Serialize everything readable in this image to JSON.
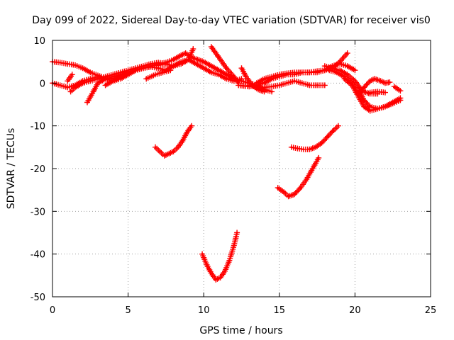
{
  "chart_data": {
    "type": "scatter",
    "title": "Day 099 of 2022, Sidereal Day-to-day VTEC variation (SDTVAR) for receiver vis0",
    "xlabel": "GPS time / hours",
    "ylabel": "SDTVAR / TECUs",
    "xlim": [
      0,
      25
    ],
    "ylim": [
      -50,
      10
    ],
    "xticks": [
      0,
      5,
      10,
      15,
      20,
      25
    ],
    "yticks": [
      10,
      0,
      -10,
      -20,
      -30,
      -40,
      -50
    ],
    "xtick_labels": [
      "0",
      "5",
      "10",
      "15",
      "20",
      "25"
    ],
    "ytick_labels": [
      "10",
      "0",
      "-10",
      "-20",
      "-30",
      "-40",
      "-50"
    ],
    "grid": true,
    "marker": "plus",
    "color": "#ff0000",
    "series": [
      {
        "points": [
          [
            0.0,
            5.0
          ],
          [
            0.5,
            4.8
          ],
          [
            1.0,
            4.5
          ],
          [
            1.5,
            4.2
          ],
          [
            2.0,
            3.5
          ],
          [
            2.5,
            2.5
          ],
          [
            3.0,
            1.8
          ],
          [
            3.5,
            1.2
          ],
          [
            4.0,
            1.0
          ],
          [
            4.5,
            1.5
          ],
          [
            5.0,
            2.5
          ]
        ]
      },
      {
        "points": [
          [
            0.0,
            0.0
          ],
          [
            0.5,
            -0.5
          ],
          [
            1.0,
            -1.0
          ],
          [
            1.5,
            -0.5
          ],
          [
            2.0,
            0.5
          ],
          [
            2.5,
            1.0
          ],
          [
            3.0,
            1.5
          ],
          [
            3.5,
            1.0
          ],
          [
            4.0,
            0.5
          ],
          [
            4.5,
            1.0
          ],
          [
            5.0,
            2.0
          ],
          [
            5.5,
            3.0
          ],
          [
            6.0,
            3.5
          ],
          [
            6.5,
            4.0
          ],
          [
            7.0,
            4.2
          ],
          [
            7.5,
            4.5
          ]
        ]
      },
      {
        "points": [
          [
            1.2,
            -2.0
          ],
          [
            1.5,
            -1.0
          ],
          [
            2.0,
            0.0
          ],
          [
            2.5,
            0.5
          ],
          [
            3.0,
            1.0
          ],
          [
            3.5,
            1.5
          ],
          [
            4.0,
            2.0
          ],
          [
            4.5,
            2.5
          ],
          [
            5.0,
            3.0
          ],
          [
            5.5,
            3.5
          ],
          [
            6.0,
            4.0
          ],
          [
            6.5,
            4.5
          ],
          [
            7.0,
            4.8
          ],
          [
            7.5,
            4.5
          ],
          [
            8.0,
            4.0
          ],
          [
            8.5,
            4.5
          ],
          [
            9.0,
            5.5
          ],
          [
            9.3,
            8.0
          ]
        ]
      },
      {
        "points": [
          [
            1.0,
            0.5
          ],
          [
            1.3,
            2.0
          ]
        ]
      },
      {
        "points": [
          [
            2.3,
            -4.5
          ],
          [
            2.7,
            -2.0
          ],
          [
            3.0,
            0.0
          ],
          [
            3.5,
            1.0
          ],
          [
            4.0,
            1.5
          ],
          [
            4.5,
            2.0
          ],
          [
            5.0,
            2.5
          ],
          [
            5.5,
            3.0
          ],
          [
            6.0,
            3.5
          ],
          [
            6.5,
            4.0
          ],
          [
            7.0,
            4.5
          ],
          [
            7.5,
            4.8
          ],
          [
            8.0,
            5.5
          ],
          [
            8.5,
            6.5
          ],
          [
            8.8,
            7.0
          ],
          [
            9.2,
            6.0
          ],
          [
            9.6,
            5.5
          ],
          [
            10.0,
            5.0
          ],
          [
            10.5,
            4.0
          ],
          [
            11.0,
            3.0
          ],
          [
            11.5,
            2.0
          ],
          [
            12.0,
            1.0
          ],
          [
            12.5,
            0.5
          ],
          [
            13.0,
            0.0
          ],
          [
            13.5,
            -0.5
          ],
          [
            14.0,
            -1.5
          ],
          [
            14.5,
            -2.0
          ]
        ]
      },
      {
        "points": [
          [
            3.5,
            -0.5
          ],
          [
            4.0,
            0.5
          ],
          [
            4.5,
            1.5
          ],
          [
            5.0,
            2.5
          ],
          [
            5.5,
            3.0
          ],
          [
            6.0,
            3.5
          ],
          [
            6.5,
            3.8
          ],
          [
            7.0,
            3.5
          ],
          [
            7.5,
            3.0
          ],
          [
            8.0,
            4.0
          ],
          [
            8.5,
            5.0
          ],
          [
            9.0,
            5.5
          ],
          [
            9.5,
            4.5
          ],
          [
            10.0,
            3.5
          ],
          [
            10.5,
            2.5
          ],
          [
            11.0,
            2.0
          ],
          [
            11.5,
            1.0
          ],
          [
            12.0,
            0.5
          ],
          [
            12.5,
            1.0
          ]
        ]
      },
      {
        "points": [
          [
            6.2,
            1.0
          ],
          [
            6.8,
            2.0
          ],
          [
            7.3,
            2.5
          ],
          [
            7.8,
            3.0
          ]
        ]
      },
      {
        "points": [
          [
            10.5,
            8.5
          ],
          [
            11.0,
            6.0
          ],
          [
            11.5,
            3.5
          ],
          [
            12.0,
            1.5
          ],
          [
            12.3,
            0.0
          ]
        ]
      },
      {
        "points": [
          [
            12.5,
            3.5
          ],
          [
            12.8,
            1.5
          ],
          [
            13.2,
            -0.5
          ],
          [
            13.6,
            -1.5
          ],
          [
            14.0,
            -2.0
          ]
        ]
      },
      {
        "points": [
          [
            12.3,
            -0.5
          ],
          [
            13.0,
            -0.8
          ],
          [
            13.5,
            -0.5
          ],
          [
            14.0,
            0.0
          ],
          [
            14.5,
            1.0
          ],
          [
            15.0,
            1.5
          ],
          [
            15.5,
            2.0
          ],
          [
            16.0,
            2.0
          ],
          [
            16.5,
            2.5
          ],
          [
            17.0,
            2.5
          ],
          [
            17.5,
            2.5
          ],
          [
            18.0,
            3.0
          ],
          [
            18.5,
            3.5
          ],
          [
            19.0,
            5.0
          ],
          [
            19.5,
            7.0
          ]
        ]
      },
      {
        "points": [
          [
            13.0,
            -0.5
          ],
          [
            13.5,
            -1.0
          ],
          [
            14.0,
            -1.0
          ],
          [
            14.5,
            -0.8
          ],
          [
            15.0,
            -0.5
          ],
          [
            15.5,
            0.0
          ],
          [
            16.0,
            0.5
          ],
          [
            16.5,
            0.0
          ],
          [
            17.0,
            -0.5
          ],
          [
            17.5,
            -0.5
          ],
          [
            18.0,
            -0.5
          ]
        ]
      },
      {
        "points": [
          [
            13.5,
            0.0
          ],
          [
            14.0,
            1.0
          ],
          [
            14.5,
            1.5
          ],
          [
            15.0,
            2.0
          ],
          [
            15.5,
            2.3
          ],
          [
            16.0,
            2.5
          ],
          [
            16.5,
            2.5
          ],
          [
            17.0,
            2.5
          ],
          [
            17.5,
            2.8
          ],
          [
            18.0,
            3.0
          ],
          [
            18.5,
            4.0
          ],
          [
            19.0,
            4.5
          ],
          [
            19.5,
            4.0
          ],
          [
            20.0,
            3.0
          ]
        ]
      },
      {
        "points": [
          [
            18.0,
            4.0
          ],
          [
            18.5,
            3.5
          ],
          [
            19.0,
            3.0
          ],
          [
            19.5,
            2.0
          ],
          [
            20.0,
            0.5
          ],
          [
            20.3,
            -1.0
          ],
          [
            20.6,
            -2.0
          ],
          [
            21.0,
            -2.5
          ],
          [
            21.5,
            -2.5
          ]
        ]
      },
      {
        "points": [
          [
            18.3,
            3.0
          ],
          [
            18.8,
            2.5
          ],
          [
            19.3,
            1.5
          ],
          [
            19.8,
            0.0
          ],
          [
            20.3,
            -2.0
          ],
          [
            20.6,
            -4.0
          ],
          [
            21.0,
            -5.5
          ],
          [
            21.5,
            -6.0
          ],
          [
            22.0,
            -5.5
          ],
          [
            22.5,
            -4.5
          ],
          [
            23.0,
            -3.5
          ]
        ]
      },
      {
        "points": [
          [
            19.3,
            1.0
          ],
          [
            19.8,
            -0.5
          ],
          [
            20.2,
            -3.0
          ],
          [
            20.6,
            -5.5
          ],
          [
            21.0,
            -6.5
          ],
          [
            21.5,
            -6.0
          ],
          [
            22.0,
            -5.5
          ],
          [
            22.5,
            -4.8
          ],
          [
            23.0,
            -4.0
          ]
        ]
      },
      {
        "points": [
          [
            20.2,
            -2.5
          ],
          [
            20.6,
            -1.0
          ],
          [
            21.0,
            0.5
          ],
          [
            21.3,
            1.0
          ],
          [
            21.7,
            0.5
          ],
          [
            22.0,
            0.0
          ],
          [
            22.3,
            0.2
          ]
        ]
      },
      {
        "points": [
          [
            21.0,
            -2.2
          ],
          [
            21.5,
            -2.0
          ],
          [
            22.0,
            -2.2
          ]
        ]
      },
      {
        "points": [
          [
            22.6,
            -0.8
          ],
          [
            23.0,
            -1.8
          ]
        ]
      },
      {
        "points": [
          [
            6.8,
            -15.0
          ],
          [
            7.1,
            -16.0
          ],
          [
            7.4,
            -17.0
          ],
          [
            7.7,
            -16.5
          ],
          [
            8.0,
            -16.0
          ],
          [
            8.3,
            -15.0
          ],
          [
            8.6,
            -13.5
          ],
          [
            8.9,
            -11.5
          ],
          [
            9.2,
            -10.0
          ]
        ]
      },
      {
        "points": [
          [
            9.9,
            -40.0
          ],
          [
            10.2,
            -42.5
          ],
          [
            10.5,
            -44.5
          ],
          [
            10.8,
            -46.0
          ],
          [
            11.1,
            -45.5
          ],
          [
            11.4,
            -44.0
          ],
          [
            11.7,
            -41.5
          ],
          [
            12.0,
            -38.0
          ],
          [
            12.2,
            -35.0
          ]
        ]
      },
      {
        "points": [
          [
            14.9,
            -24.5
          ],
          [
            15.3,
            -25.5
          ],
          [
            15.6,
            -26.5
          ],
          [
            16.0,
            -26.0
          ],
          [
            16.4,
            -24.5
          ],
          [
            16.8,
            -22.5
          ],
          [
            17.2,
            -20.0
          ],
          [
            17.6,
            -17.5
          ]
        ]
      },
      {
        "points": [
          [
            15.8,
            -15.0
          ],
          [
            16.2,
            -15.3
          ],
          [
            16.6,
            -15.5
          ],
          [
            17.0,
            -15.5
          ],
          [
            17.4,
            -15.0
          ],
          [
            17.8,
            -14.0
          ],
          [
            18.2,
            -12.5
          ],
          [
            18.6,
            -11.0
          ],
          [
            18.9,
            -10.0
          ]
        ]
      }
    ]
  }
}
